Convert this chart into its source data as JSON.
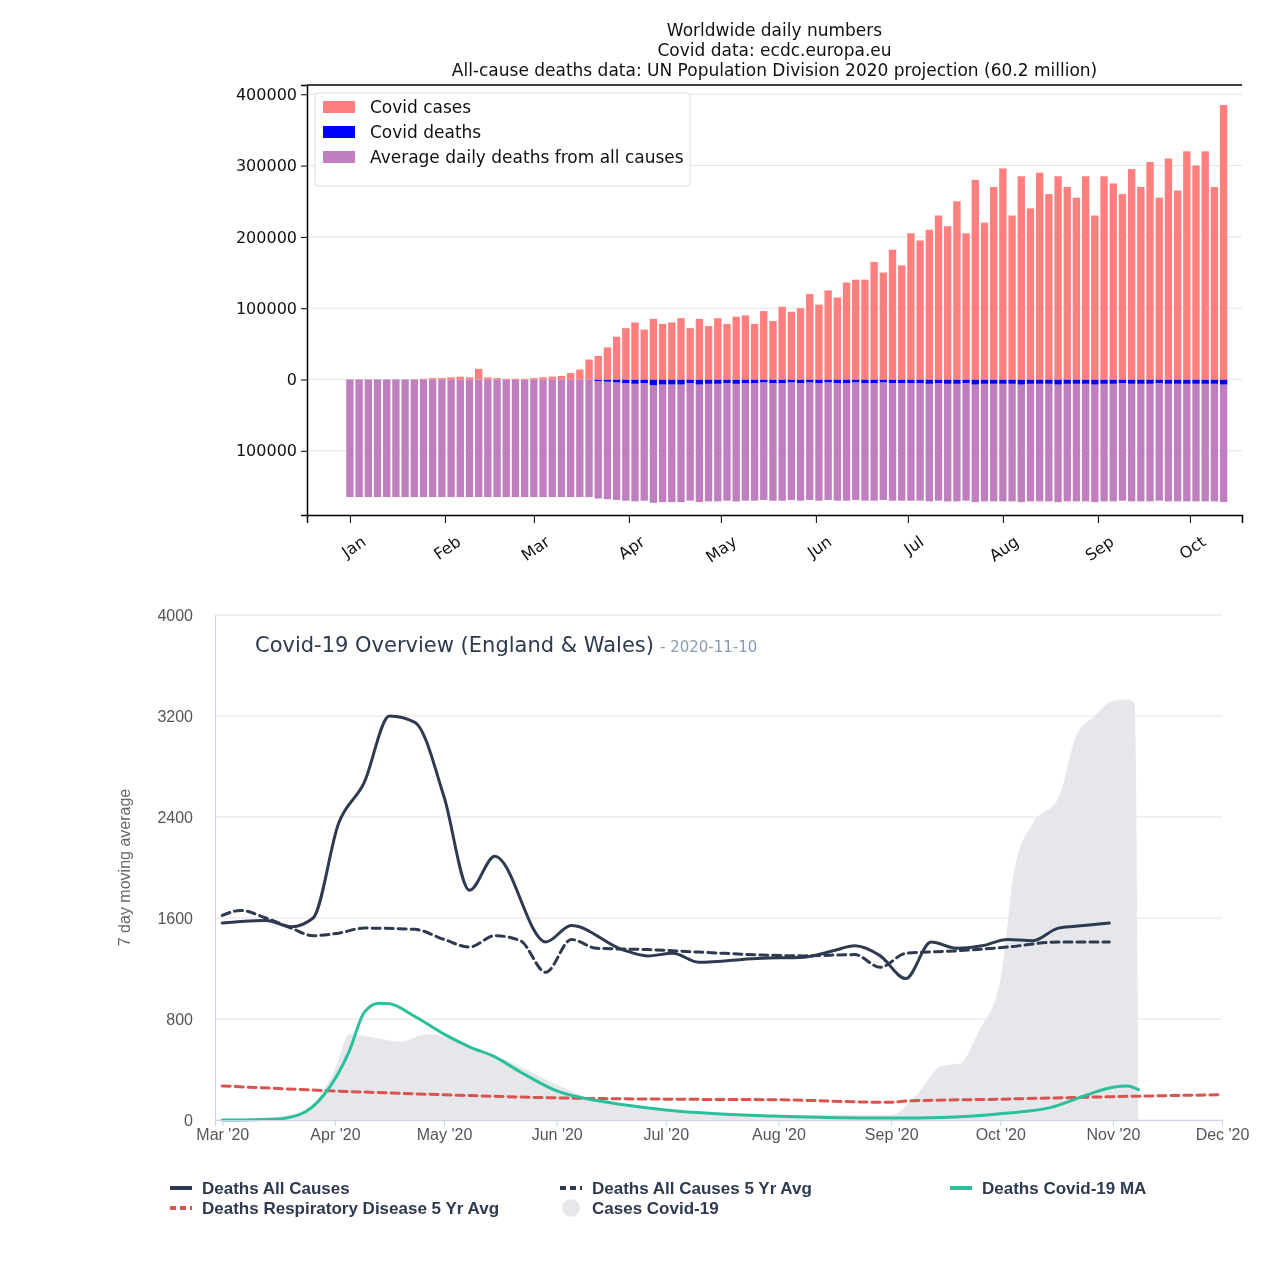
{
  "chart_data": [
    {
      "type": "bar",
      "title": "Worldwide daily numbers",
      "subtitle": "Covid data: ecdc.europa.eu\nAll-cause deaths data: UN Population Division 2020 projection (60.2 million)",
      "x": [
        "2020-01-01",
        "2020-01-04",
        "2020-01-07",
        "2020-01-10",
        "2020-01-13",
        "2020-01-16",
        "2020-01-19",
        "2020-01-22",
        "2020-01-25",
        "2020-01-28",
        "2020-01-31",
        "2020-02-03",
        "2020-02-06",
        "2020-02-09",
        "2020-02-12",
        "2020-02-15",
        "2020-02-18",
        "2020-02-21",
        "2020-02-24",
        "2020-02-27",
        "2020-03-01",
        "2020-03-04",
        "2020-03-07",
        "2020-03-10",
        "2020-03-13",
        "2020-03-16",
        "2020-03-19",
        "2020-03-22",
        "2020-03-25",
        "2020-03-28",
        "2020-03-31",
        "2020-04-03",
        "2020-04-06",
        "2020-04-09",
        "2020-04-12",
        "2020-04-15",
        "2020-04-18",
        "2020-04-21",
        "2020-04-24",
        "2020-04-27",
        "2020-04-30",
        "2020-05-03",
        "2020-05-06",
        "2020-05-09",
        "2020-05-12",
        "2020-05-15",
        "2020-05-18",
        "2020-05-21",
        "2020-05-24",
        "2020-05-27",
        "2020-05-30",
        "2020-06-02",
        "2020-06-05",
        "2020-06-08",
        "2020-06-11",
        "2020-06-14",
        "2020-06-17",
        "2020-06-20",
        "2020-06-23",
        "2020-06-26",
        "2020-06-29",
        "2020-07-02",
        "2020-07-05",
        "2020-07-08",
        "2020-07-11",
        "2020-07-14",
        "2020-07-17",
        "2020-07-20",
        "2020-07-23",
        "2020-07-26",
        "2020-07-29",
        "2020-08-01",
        "2020-08-04",
        "2020-08-07",
        "2020-08-10",
        "2020-08-13",
        "2020-08-16",
        "2020-08-19",
        "2020-08-22",
        "2020-08-25",
        "2020-08-28",
        "2020-08-31",
        "2020-09-03",
        "2020-09-06",
        "2020-09-09",
        "2020-09-12",
        "2020-09-15",
        "2020-09-18",
        "2020-09-21",
        "2020-09-24",
        "2020-09-27",
        "2020-09-30",
        "2020-10-03",
        "2020-10-06",
        "2020-10-09",
        "2020-10-12"
      ],
      "series": [
        {
          "name": "Covid cases",
          "color": "#ff7f7f",
          "values": [
            0,
            0,
            0,
            0,
            0,
            0,
            0,
            0,
            1000,
            2000,
            2000,
            3000,
            4000,
            3000,
            15000,
            3000,
            2000,
            1000,
            1000,
            1000,
            2000,
            3000,
            4000,
            5000,
            9000,
            14000,
            28000,
            33000,
            45000,
            60000,
            72000,
            80000,
            70000,
            85000,
            78000,
            80000,
            86000,
            72000,
            85000,
            75000,
            86000,
            78000,
            88000,
            90000,
            78000,
            96000,
            82000,
            102000,
            95000,
            100000,
            120000,
            105000,
            125000,
            115000,
            136000,
            140000,
            140000,
            165000,
            150000,
            182000,
            160000,
            205000,
            195000,
            210000,
            230000,
            215000,
            250000,
            205000,
            280000,
            220000,
            270000,
            296000,
            230000,
            285000,
            240000,
            290000,
            260000,
            285000,
            270000,
            255000,
            285000,
            230000,
            285000,
            275000,
            260000,
            295000,
            270000,
            305000,
            255000,
            310000,
            265000,
            320000,
            300000,
            320000,
            270000,
            385000
          ]
        },
        {
          "name": "Covid deaths",
          "color": "#0000ff",
          "values": [
            0,
            0,
            0,
            0,
            0,
            0,
            0,
            0,
            0,
            0,
            0,
            0,
            0,
            0,
            0,
            0,
            0,
            0,
            0,
            0,
            0,
            0,
            0,
            0,
            null,
            null,
            null,
            -2000,
            -3000,
            -4000,
            -5000,
            -6000,
            -5000,
            -8000,
            -7000,
            -7000,
            -7000,
            -5000,
            -7000,
            -6000,
            -6000,
            -5000,
            -6000,
            -5000,
            -5000,
            -4000,
            -5000,
            -5000,
            -4000,
            -5000,
            -4000,
            -5000,
            -4000,
            -5000,
            -5000,
            -4000,
            -5000,
            -5000,
            -4000,
            -5000,
            -5000,
            -5000,
            -5000,
            -6000,
            -5000,
            -6000,
            -6000,
            -5000,
            -7000,
            -6000,
            -6000,
            -6000,
            -6000,
            -7000,
            -6000,
            -6000,
            -6000,
            -7000,
            -6000,
            -6000,
            -6000,
            -7000,
            -6000,
            -6000,
            -5000,
            -6000,
            -6000,
            -6000,
            -5000,
            -6000,
            -6000,
            -6000,
            -6000,
            -6000,
            -6000,
            -7000
          ]
        },
        {
          "name": "Average daily deaths from all causes",
          "color": "#bf7fbf",
          "values": [
            -164900,
            -164900,
            -164900,
            -164900,
            -164900,
            -164900,
            -164900,
            -164900,
            -164900,
            -164900,
            -164900,
            -164900,
            -164900,
            -164900,
            -164900,
            -164900,
            -164900,
            -164900,
            -164900,
            -164900,
            -164900,
            -164900,
            -164900,
            -164900,
            -164900,
            -164900,
            -164900,
            -164900,
            -164900,
            -164900,
            -164900,
            -164900,
            -164900,
            -164900,
            -164900,
            -164900,
            -164900,
            -164900,
            -164900,
            -164900,
            -164900,
            -164900,
            -164900,
            -164900,
            -164900,
            -164900,
            -164900,
            -164900,
            -164900,
            -164900,
            -164900,
            -164900,
            -164900,
            -164900,
            -164900,
            -164900,
            -164900,
            -164900,
            -164900,
            -164900,
            -164900,
            -164900,
            -164900,
            -164900,
            -164900,
            -164900,
            -164900,
            -164900,
            -164900,
            -164900,
            -164900,
            -164900,
            -164900,
            -164900,
            -164900,
            -164900,
            -164900,
            -164900,
            -164900,
            -164900,
            -164900,
            -164900,
            -164900,
            -164900,
            -164900,
            -164900,
            -164900,
            -164900,
            -164900,
            -164900,
            -164900,
            -164900,
            -164900,
            -164900,
            -164900,
            -164900
          ]
        }
      ],
      "xlim": [
        "2019-12-18",
        "2020-10-18"
      ],
      "xticks": [
        {
          "value": "2020-01-01",
          "label": "Jan"
        },
        {
          "value": "2020-02-01",
          "label": "Feb"
        },
        {
          "value": "2020-03-01",
          "label": "Mar"
        },
        {
          "value": "2020-04-01",
          "label": "Apr"
        },
        {
          "value": "2020-05-01",
          "label": "May"
        },
        {
          "value": "2020-06-01",
          "label": "Jun"
        },
        {
          "value": "2020-07-01",
          "label": "Jul"
        },
        {
          "value": "2020-08-01",
          "label": "Aug"
        },
        {
          "value": "2020-09-01",
          "label": "Sep"
        },
        {
          "value": "2020-10-01",
          "label": "Oct"
        }
      ],
      "ylim": [
        -190000,
        413000
      ],
      "yticks": [
        {
          "value": -100000,
          "label": "100000"
        },
        0,
        100000,
        200000,
        300000,
        400000
      ],
      "stacked": true,
      "grid": "y",
      "legend": "top left"
    },
    {
      "type": "line",
      "title": "Covid-19 Overview (England & Wales)",
      "subtitle": "- 2020-11-10",
      "ylabel": "7 day moving average",
      "series": [
        {
          "name": "Deaths All Causes",
          "color": "#2d3a4f",
          "line_style": "solid",
          "x": [
            "2020-03-01",
            "2020-03-13",
            "2020-03-20",
            "2020-03-26",
            "2020-04-02",
            "2020-04-09",
            "2020-04-16",
            "2020-04-23",
            "2020-05-01",
            "2020-05-08",
            "2020-05-15",
            "2020-05-29",
            "2020-06-05",
            "2020-06-19",
            "2020-06-26",
            "2020-07-03",
            "2020-07-10",
            "2020-07-26",
            "2020-08-08",
            "2020-08-16",
            "2020-08-22",
            "2020-08-29",
            "2020-09-05",
            "2020-09-12",
            "2020-09-19",
            "2020-09-26",
            "2020-10-03",
            "2020-10-10",
            "2020-10-17",
            "2020-10-24",
            "2020-10-31"
          ],
          "values": [
            1560,
            1580,
            1530,
            1600,
            2350,
            2670,
            3200,
            3150,
            2560,
            1820,
            2090,
            1410,
            1540,
            1350,
            1300,
            1320,
            1250,
            1280,
            1290,
            1340,
            1380,
            1300,
            1120,
            1410,
            1360,
            1380,
            1430,
            1420,
            1520,
            1540,
            1560
          ]
        },
        {
          "name": "Deaths All Causes 5 Yr Avg",
          "color": "#2d3a4f",
          "line_style": "dashed",
          "x": [
            "2020-03-01",
            "2020-03-06",
            "2020-03-13",
            "2020-03-20",
            "2020-03-26",
            "2020-04-02",
            "2020-04-09",
            "2020-04-23",
            "2020-05-01",
            "2020-05-08",
            "2020-05-15",
            "2020-05-22",
            "2020-05-29",
            "2020-06-05",
            "2020-06-12",
            "2020-06-26",
            "2020-07-10",
            "2020-08-08",
            "2020-08-22",
            "2020-08-29",
            "2020-09-05",
            "2020-09-19",
            "2020-10-03",
            "2020-10-17",
            "2020-10-24",
            "2020-10-31"
          ],
          "values": [
            1620,
            1660,
            1600,
            1520,
            1460,
            1480,
            1520,
            1510,
            1430,
            1370,
            1460,
            1420,
            1170,
            1430,
            1360,
            1350,
            1330,
            1300,
            1310,
            1210,
            1320,
            1340,
            1370,
            1410,
            1410,
            1410
          ]
        },
        {
          "name": "Deaths Covid-19 MA",
          "color": "#2bbf9b",
          "line_style": "solid",
          "x": [
            "2020-03-01",
            "2020-03-15",
            "2020-03-22",
            "2020-03-29",
            "2020-04-05",
            "2020-04-09",
            "2020-04-13",
            "2020-04-16",
            "2020-04-23",
            "2020-05-01",
            "2020-05-08",
            "2020-05-15",
            "2020-05-22",
            "2020-06-01",
            "2020-06-15",
            "2020-07-01",
            "2020-07-15",
            "2020-08-01",
            "2020-09-01",
            "2020-09-15",
            "2020-10-01",
            "2020-10-15",
            "2020-10-25",
            "2020-11-01",
            "2020-11-05",
            "2020-11-08"
          ],
          "values": [
            0,
            5,
            40,
            200,
            550,
            850,
            925,
            920,
            820,
            680,
            580,
            500,
            380,
            230,
            140,
            80,
            50,
            30,
            15,
            20,
            50,
            100,
            200,
            260,
            270,
            240
          ]
        },
        {
          "name": "Deaths Respiratory Disease 5 Yr Avg",
          "color": "#d9534f",
          "line_style": "dashed",
          "x": [
            "2020-03-01",
            "2020-04-01",
            "2020-05-01",
            "2020-06-01",
            "2020-07-01",
            "2020-08-01",
            "2020-09-01",
            "2020-09-05",
            "2020-10-01",
            "2020-11-01",
            "2020-12-01"
          ],
          "values": [
            270,
            230,
            200,
            175,
            165,
            160,
            140,
            150,
            165,
            185,
            200
          ]
        },
        {
          "name": "Cases Covid-19",
          "color": "#e5e7ea",
          "type": "area",
          "x": [
            "2020-03-01",
            "2020-03-22",
            "2020-04-01",
            "2020-04-05",
            "2020-04-12",
            "2020-04-19",
            "2020-04-26",
            "2020-05-03",
            "2020-05-10",
            "2020-05-20",
            "2020-06-01",
            "2020-06-15",
            "2020-07-01",
            "2020-08-01",
            "2020-08-15",
            "2020-09-01",
            "2020-09-08",
            "2020-09-15",
            "2020-09-20",
            "2020-09-25",
            "2020-10-01",
            "2020-10-05",
            "2020-10-10",
            "2020-10-17",
            "2020-10-22",
            "2020-10-27",
            "2020-11-01",
            "2020-11-05",
            "2020-11-07",
            "2020-11-08"
          ],
          "values": [
            0,
            50,
            400,
            680,
            650,
            620,
            680,
            650,
            560,
            450,
            280,
            130,
            80,
            40,
            40,
            40,
            200,
            430,
            450,
            700,
            1100,
            2000,
            2350,
            2550,
            3050,
            3200,
            3320,
            3330,
            3300,
            0
          ]
        }
      ],
      "xlim": [
        "2020-02-28",
        "2020-12-01"
      ],
      "xticks": [
        {
          "value": "2020-03-01",
          "label": "Mar '20"
        },
        {
          "value": "2020-04-01",
          "label": "Apr '20"
        },
        {
          "value": "2020-05-01",
          "label": "May '20"
        },
        {
          "value": "2020-06-01",
          "label": "Jun '20"
        },
        {
          "value": "2020-07-01",
          "label": "Jul '20"
        },
        {
          "value": "2020-08-01",
          "label": "Aug '20"
        },
        {
          "value": "2020-09-01",
          "label": "Sep '20"
        },
        {
          "value": "2020-10-01",
          "label": "Oct '20"
        },
        {
          "value": "2020-11-01",
          "label": "Nov '20"
        },
        {
          "value": "2020-12-01",
          "label": "Dec '20"
        }
      ],
      "ylim": [
        0,
        4000
      ],
      "yticks": [
        0,
        800,
        1600,
        2400,
        3200,
        4000
      ],
      "grid": "y",
      "legend": "bottom"
    }
  ]
}
